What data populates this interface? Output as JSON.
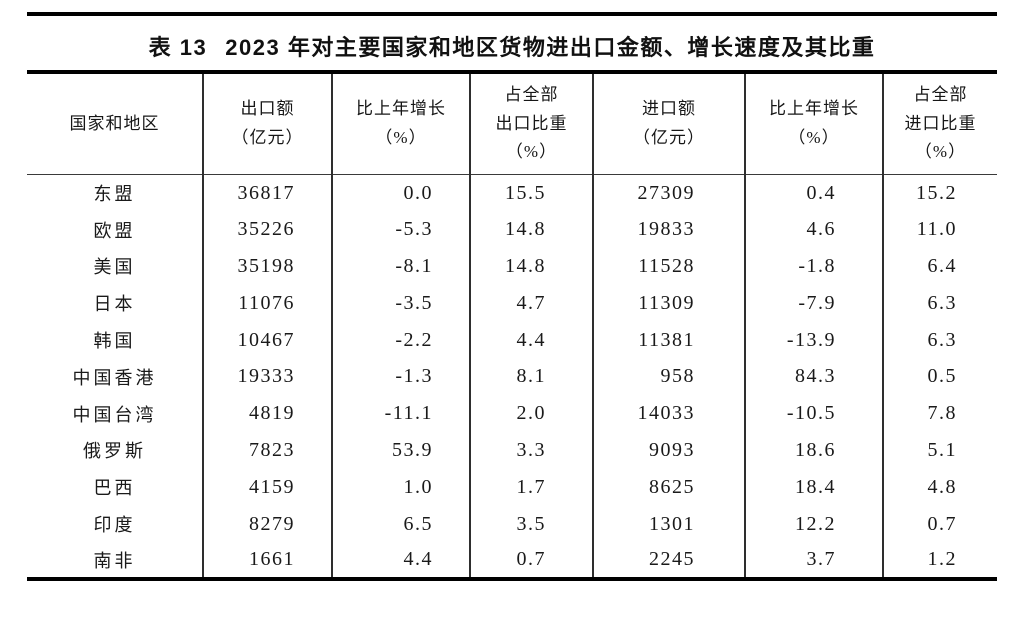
{
  "page": {
    "background": "#ffffff",
    "text_color": "#1a1a1a",
    "rule_color": "#000000"
  },
  "title": {
    "label": "表 13",
    "text": "2023 年对主要国家和地区货物进出口金额、增长速度及其比重"
  },
  "table": {
    "columns": [
      {
        "id": "region",
        "header": "国家和地区"
      },
      {
        "id": "export_value",
        "header": "出口额\n（亿元）"
      },
      {
        "id": "export_growth",
        "header": "比上年增长\n（%）"
      },
      {
        "id": "export_share",
        "header": "占全部\n出口比重\n（%）"
      },
      {
        "id": "import_value",
        "header": "进口额\n（亿元）"
      },
      {
        "id": "import_growth",
        "header": "比上年增长\n（%）"
      },
      {
        "id": "import_share",
        "header": "占全部\n进口比重\n（%）"
      }
    ],
    "rows": [
      {
        "region": "东盟",
        "export_value": "36817",
        "export_growth": "0.0",
        "export_share": "15.5",
        "import_value": "27309",
        "import_growth": "0.4",
        "import_share": "15.2"
      },
      {
        "region": "欧盟",
        "export_value": "35226",
        "export_growth": "-5.3",
        "export_share": "14.8",
        "import_value": "19833",
        "import_growth": "4.6",
        "import_share": "11.0"
      },
      {
        "region": "美国",
        "export_value": "35198",
        "export_growth": "-8.1",
        "export_share": "14.8",
        "import_value": "11528",
        "import_growth": "-1.8",
        "import_share": "6.4"
      },
      {
        "region": "日本",
        "export_value": "11076",
        "export_growth": "-3.5",
        "export_share": "4.7",
        "import_value": "11309",
        "import_growth": "-7.9",
        "import_share": "6.3"
      },
      {
        "region": "韩国",
        "export_value": "10467",
        "export_growth": "-2.2",
        "export_share": "4.4",
        "import_value": "11381",
        "import_growth": "-13.9",
        "import_share": "6.3"
      },
      {
        "region": "中国香港",
        "export_value": "19333",
        "export_growth": "-1.3",
        "export_share": "8.1",
        "import_value": "958",
        "import_growth": "84.3",
        "import_share": "0.5"
      },
      {
        "region": "中国台湾",
        "export_value": "4819",
        "export_growth": "-11.1",
        "export_share": "2.0",
        "import_value": "14033",
        "import_growth": "-10.5",
        "import_share": "7.8"
      },
      {
        "region": "俄罗斯",
        "export_value": "7823",
        "export_growth": "53.9",
        "export_share": "3.3",
        "import_value": "9093",
        "import_growth": "18.6",
        "import_share": "5.1"
      },
      {
        "region": "巴西",
        "export_value": "4159",
        "export_growth": "1.0",
        "export_share": "1.7",
        "import_value": "8625",
        "import_growth": "18.4",
        "import_share": "4.8"
      },
      {
        "region": "印度",
        "export_value": "8279",
        "export_growth": "6.5",
        "export_share": "3.5",
        "import_value": "1301",
        "import_growth": "12.2",
        "import_share": "0.7"
      },
      {
        "region": "南非",
        "export_value": "1661",
        "export_growth": "4.4",
        "export_share": "0.7",
        "import_value": "2245",
        "import_growth": "3.7",
        "import_share": "1.2"
      }
    ]
  }
}
